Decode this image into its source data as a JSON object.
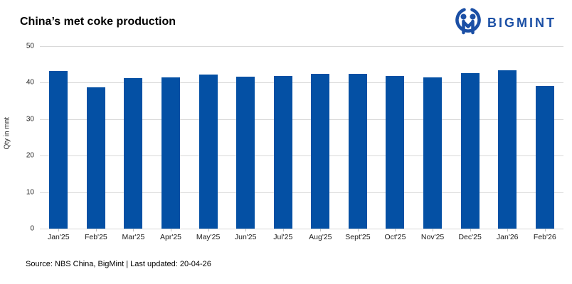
{
  "header": {
    "title": "China’s met coke production"
  },
  "logo": {
    "text": "BIGMINT",
    "icon": "bigmint-owl-icon",
    "color": "#1b4fa5"
  },
  "footer": {
    "source_line": "Source: NBS China, BigMint | Last updated: 20-04-26"
  },
  "colors": {
    "bar": "#0450a4",
    "gridline": "#d9d9d9",
    "axis_text": "#262626",
    "baseline": "#d9d9d9"
  },
  "chart_data": {
    "type": "bar",
    "title": "China’s met coke production",
    "categories": [
      "Jan'25",
      "Feb'25",
      "Mar'25",
      "Apr'25",
      "May'25",
      "Jun'25",
      "Jul'25",
      "Aug'25",
      "Sept'25",
      "Oct'25",
      "Nov'25",
      "Dec'25",
      "Jan'26",
      "Feb'26"
    ],
    "values": [
      43.1,
      38.7,
      41.3,
      41.5,
      42.2,
      41.6,
      41.8,
      42.4,
      42.4,
      41.8,
      41.5,
      42.7,
      43.3,
      39.1
    ],
    "xlabel": "",
    "ylabel": "Qty in mnt",
    "ylim": [
      0,
      50
    ],
    "yticks": [
      0,
      10,
      20,
      30,
      40,
      50
    ],
    "grid": true,
    "legend": false,
    "bar_color": "#0450a4"
  }
}
